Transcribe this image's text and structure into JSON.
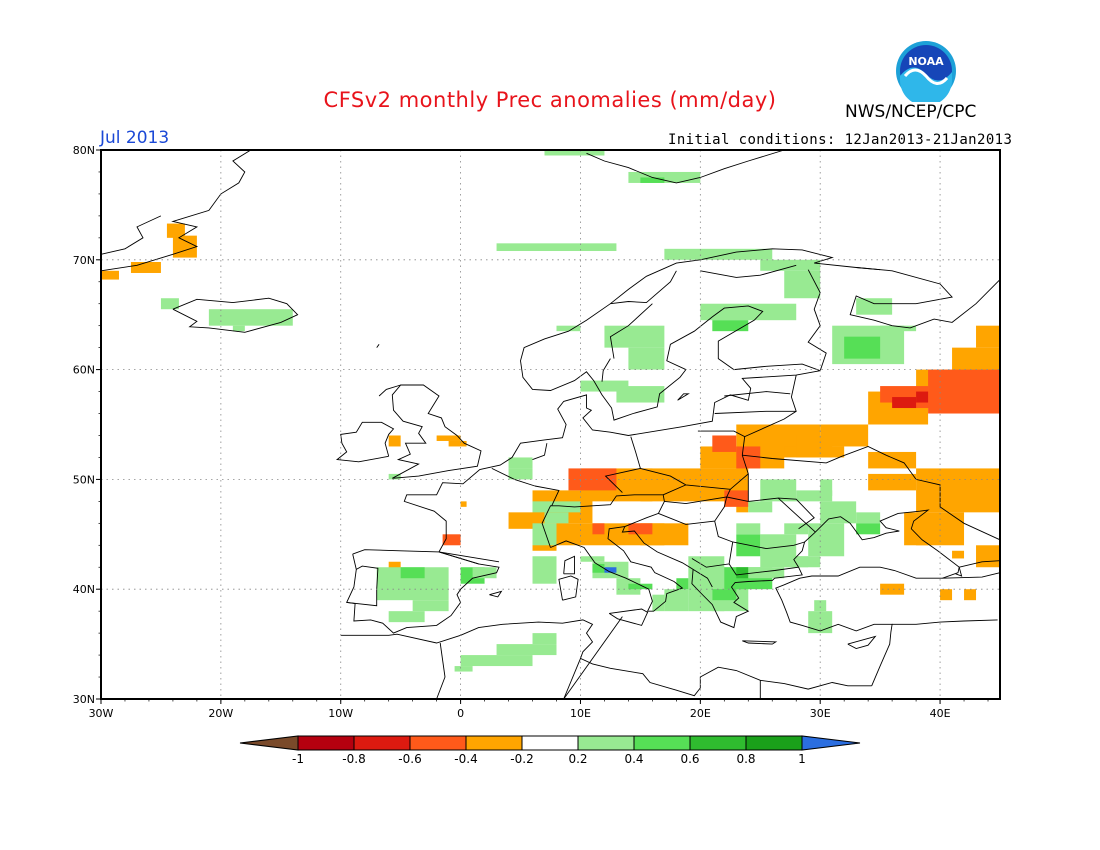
{
  "header": {
    "title": "CFSv2 monthly Prec anomalies (mm/day)",
    "agency": "NWS/NCEP/CPC",
    "logo_text": "NOAA",
    "month": "Jul 2013",
    "initial_conditions": "Initial conditions: 12Jan2013-21Jan2013"
  },
  "map": {
    "lon_range": [
      -30,
      45
    ],
    "lat_range": [
      30,
      80
    ],
    "lon_ticks": [
      "30W",
      "20W",
      "10W",
      "0",
      "10E",
      "20E",
      "30E",
      "40E"
    ],
    "lat_ticks": [
      "30N",
      "40N",
      "50N",
      "60N",
      "70N",
      "80N"
    ],
    "grid": true
  },
  "colorbar": {
    "labels": [
      "-1",
      "-0.8",
      "-0.6",
      "-0.4",
      "-0.2",
      "0.2",
      "0.4",
      "0.6",
      "0.8",
      "1"
    ],
    "colors": [
      "#7a4a2a",
      "#b5000f",
      "#dd1a10",
      "#ff5a1a",
      "#ffa500",
      "#ffffff",
      "#98ea92",
      "#56df56",
      "#2fbc2f",
      "#1aa01a",
      "#2b6ee0"
    ]
  }
}
